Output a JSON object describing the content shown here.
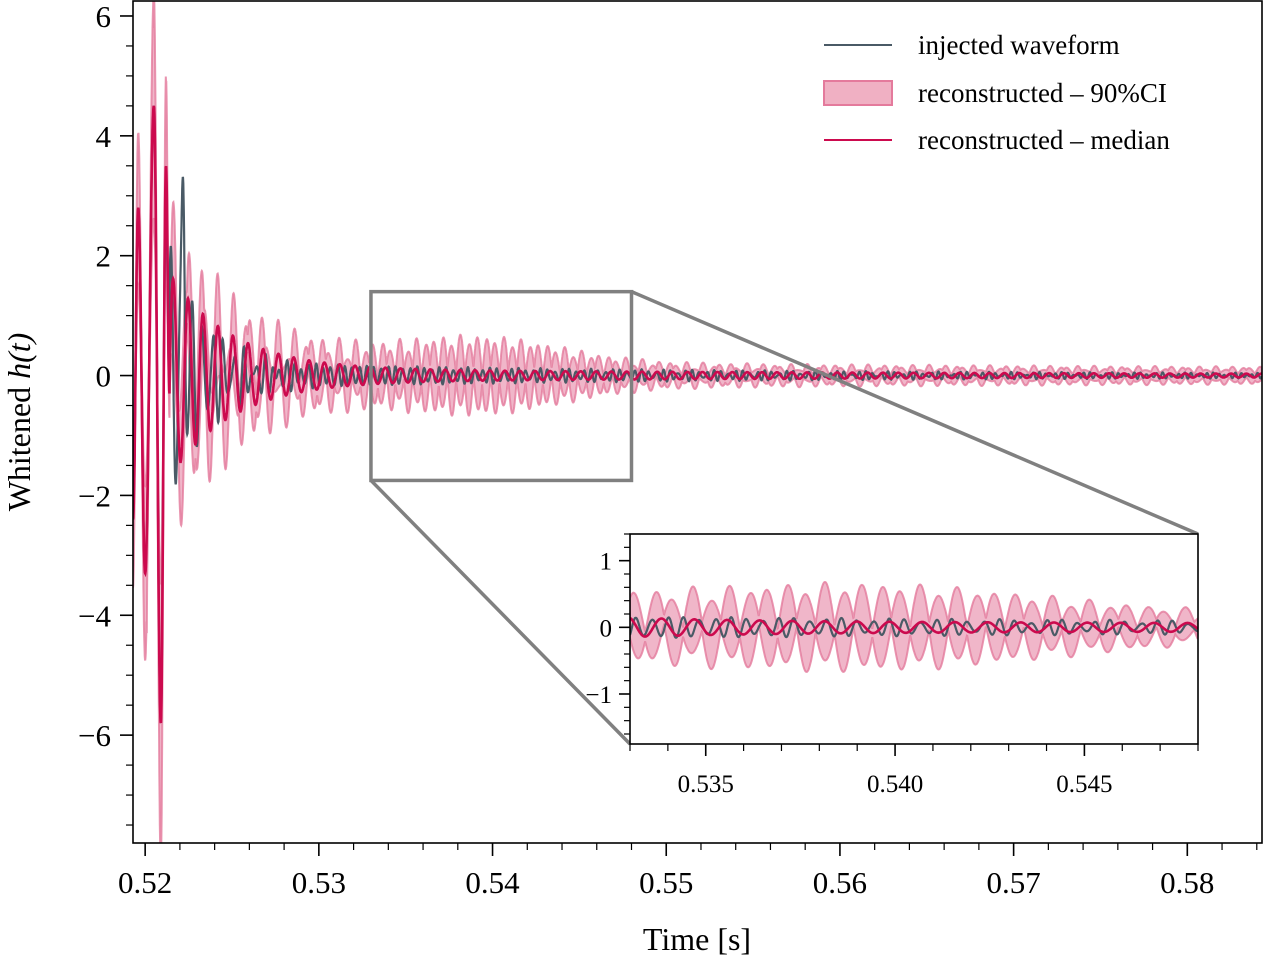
{
  "chart_data": {
    "type": "line",
    "title": "",
    "xlabel": "Time [s]",
    "ylabel_prefix": "Whitened ",
    "ylabel_math": "h(t)",
    "xlim": [
      0.5193,
      0.5843
    ],
    "ylim": [
      -7.8,
      6.25
    ],
    "xticks": [
      0.52,
      0.53,
      0.54,
      0.55,
      0.56,
      0.57,
      0.58
    ],
    "xtick_labels": [
      "0.52",
      "0.53",
      "0.54",
      "0.55",
      "0.56",
      "0.57",
      "0.58"
    ],
    "yticks": [
      6,
      4,
      2,
      0,
      -2,
      -4,
      -6
    ],
    "ytick_labels": [
      "6",
      "4",
      "2",
      "0",
      "−2",
      "−4",
      "−6"
    ],
    "grid": false,
    "legend_position": "top-right",
    "colors": {
      "injected": "#4a5a66",
      "median": "#cc0a4e",
      "ci_fill": "#e47a9c",
      "zoom_box": "#808080"
    },
    "series": [
      {
        "name": "injected waveform",
        "kind": "line",
        "description": "damped ringdown; peak ~3.7 near 0.521 s, spike ~3.0 at 0.5222 s, decays to ~0.1 by 0.545 s"
      },
      {
        "name": "reconstructed – 90%CI",
        "kind": "band",
        "description": "upper envelope peaks ~5.8 at 0.5206 s, lower ~-7.3 at 0.5208 s; band ~±0.45 around 0.539–0.540 s"
      },
      {
        "name": "reconstructed – median",
        "kind": "line",
        "description": "peaks ~4.5 at 0.5205 s, min ~-5.8 at 0.5209 s; ~±0.1 oscillation after 0.533 s"
      }
    ],
    "key_points": {
      "median_extrema": [
        [
          0.5196,
          2.8
        ],
        [
          0.52,
          -3.3
        ],
        [
          0.5205,
          4.5
        ],
        [
          0.5209,
          -5.8
        ],
        [
          0.5212,
          3.5
        ]
      ],
      "ci_extrema": [
        [
          0.5196,
          3.6
        ],
        [
          0.5201,
          -4.3
        ],
        [
          0.5205,
          5.8
        ],
        [
          0.5209,
          -7.3
        ],
        [
          0.5212,
          4.9
        ]
      ],
      "injected_spike": [
        0.5222,
        3.0
      ]
    },
    "zoom_region": {
      "x": [
        0.533,
        0.548
      ],
      "y": [
        -1.75,
        1.4
      ]
    },
    "inset": {
      "xlim": [
        0.533,
        0.548
      ],
      "ylim": [
        -1.75,
        1.4
      ],
      "xticks": [
        0.535,
        0.54,
        0.545
      ],
      "xtick_labels": [
        "0.535",
        "0.540",
        "0.545"
      ],
      "yticks": [
        1,
        0,
        -1
      ],
      "ytick_labels": [
        "1",
        "0",
        "−1"
      ]
    },
    "legend": [
      {
        "label": "injected waveform",
        "kind": "line"
      },
      {
        "label": "reconstructed – 90%CI",
        "kind": "patch"
      },
      {
        "label": "reconstructed – median",
        "kind": "line"
      }
    ]
  }
}
